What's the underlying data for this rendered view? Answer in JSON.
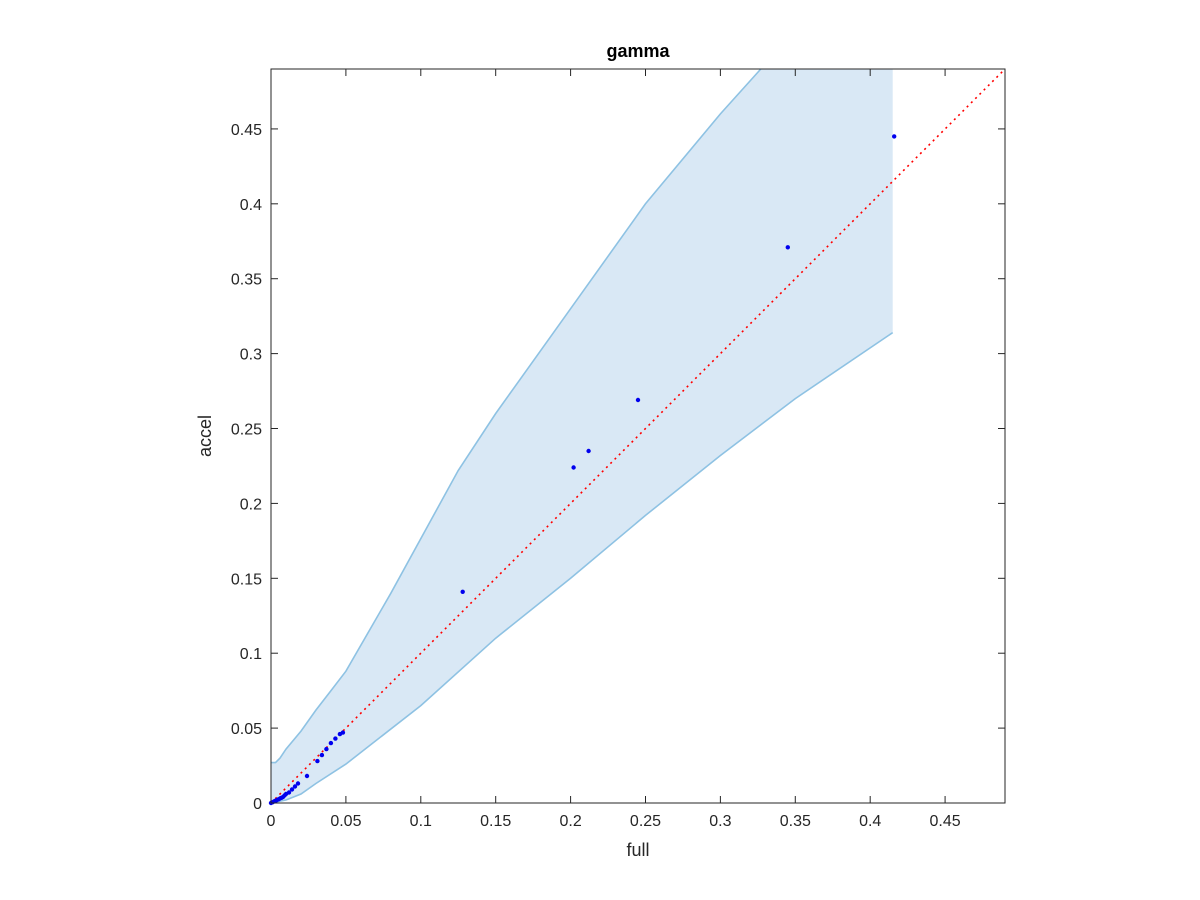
{
  "chart_data": {
    "type": "scatter",
    "title": "gamma",
    "xlabel": "full",
    "ylabel": "accel",
    "xlim": [
      0,
      0.49
    ],
    "ylim": [
      0,
      0.49
    ],
    "xticks": [
      "0",
      "0.05",
      "0.1",
      "0.15",
      "0.2",
      "0.25",
      "0.3",
      "0.35",
      "0.4",
      "0.45"
    ],
    "yticks": [
      "0",
      "0.05",
      "0.1",
      "0.15",
      "0.2",
      "0.25",
      "0.3",
      "0.35",
      "0.4",
      "0.45"
    ],
    "grid": false,
    "colors": {
      "points": "#0000ee",
      "reference_line": "#ff0000",
      "band_fill": "#d9e8f5",
      "band_edge": "#8ec2e3",
      "axes": "#262626"
    },
    "reference_line": {
      "style": "dotted",
      "x": [
        0,
        0.49
      ],
      "y": [
        0,
        0.49
      ]
    },
    "band": {
      "upper": [
        [
          0,
          0.027
        ],
        [
          0.003,
          0.027
        ],
        [
          0.006,
          0.03
        ],
        [
          0.01,
          0.036
        ],
        [
          0.02,
          0.048
        ],
        [
          0.03,
          0.062
        ],
        [
          0.04,
          0.075
        ],
        [
          0.05,
          0.088
        ],
        [
          0.08,
          0.14
        ],
        [
          0.125,
          0.222
        ],
        [
          0.15,
          0.26
        ],
        [
          0.2,
          0.33
        ],
        [
          0.25,
          0.4
        ],
        [
          0.3,
          0.46
        ],
        [
          0.327,
          0.49
        ],
        [
          0.415,
          0.49
        ]
      ],
      "lower": [
        [
          0,
          0
        ],
        [
          0.01,
          0.002
        ],
        [
          0.02,
          0.006
        ],
        [
          0.03,
          0.013
        ],
        [
          0.05,
          0.026
        ],
        [
          0.1,
          0.065
        ],
        [
          0.15,
          0.11
        ],
        [
          0.2,
          0.15
        ],
        [
          0.25,
          0.192
        ],
        [
          0.3,
          0.232
        ],
        [
          0.35,
          0.27
        ],
        [
          0.415,
          0.314
        ]
      ]
    },
    "points": {
      "x": [
        0,
        0.001,
        0.002,
        0.003,
        0.004,
        0.005,
        0.006,
        0.007,
        0.008,
        0.009,
        0.01,
        0.012,
        0.014,
        0.016,
        0.018,
        0.024,
        0.031,
        0.034,
        0.037,
        0.04,
        0.043,
        0.046,
        0.048,
        0.128,
        0.202,
        0.212,
        0.245,
        0.345,
        0.416
      ],
      "y": [
        0,
        0.0005,
        0.001,
        0.0015,
        0.002,
        0.0025,
        0.003,
        0.0035,
        0.004,
        0.005,
        0.006,
        0.007,
        0.009,
        0.011,
        0.013,
        0.018,
        0.028,
        0.032,
        0.036,
        0.04,
        0.043,
        0.046,
        0.047,
        0.141,
        0.224,
        0.235,
        0.269,
        0.371,
        0.445
      ]
    }
  }
}
